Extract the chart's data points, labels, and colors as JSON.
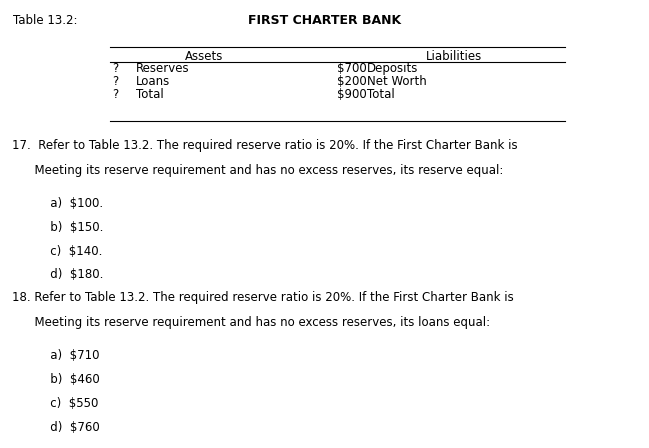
{
  "background_color": "#ffffff",
  "table_label": "Table 13.2:",
  "bank_title": "FIRST CHARTER BANK",
  "assets_header": "Assets",
  "liabilities_header": "Liabilities",
  "table_rows": [
    {
      "col1": "?",
      "col2": "Reserves",
      "col3": "$700",
      "col4": "Deposits"
    },
    {
      "col1": "?",
      "col2": "Loans",
      "col3": "$200",
      "col4": "Net Worth"
    },
    {
      "col1": "?",
      "col2": "Total",
      "col3": "$900",
      "col4": "Total"
    }
  ],
  "q17_line1": "17.  Refer to Table 13.2. The required reserve ratio is 20%. If the First Charter Bank is",
  "q17_line2": "      Meeting its reserve requirement and has no excess reserves, its reserve equal:",
  "q17_choices": [
    "   a)  $100.",
    "   b)  $150.",
    "   c)  $140.",
    "   d)  $180."
  ],
  "q18_line1": "18. Refer to Table 13.2. The required reserve ratio is 20%. If the First Charter Bank is",
  "q18_line2": "      Meeting its reserve requirement and has no excess reserves, its loans equal:",
  "q18_choices": [
    "   a)  $710",
    "   b)  $460",
    "   c)  $550",
    "   d)  $760"
  ],
  "font_size": 8.5,
  "font_size_title": 9.0,
  "text_color": "#000000",
  "line_color": "#000000"
}
